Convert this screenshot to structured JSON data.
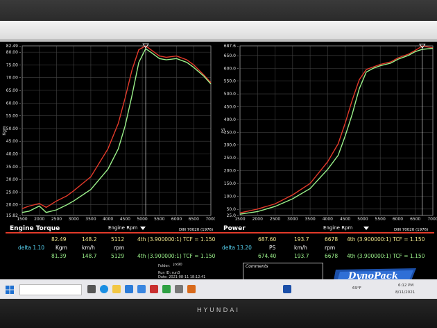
{
  "torque_panel": {
    "title": "Engine Torque",
    "xlabel": "Engine Rpm",
    "din": "DIN 70020 (1976)",
    "ylabel": "Kgm",
    "top_value": "82.49"
  },
  "power_panel": {
    "title": "Power",
    "xlabel": "Engine Rpm",
    "din": "DIN 70020 (1976)",
    "ylabel": "PS",
    "top_value": "687.6"
  },
  "chart_data": [
    {
      "type": "line",
      "title": "Engine Torque",
      "xlabel": "Engine Rpm",
      "ylabel": "Kgm",
      "xlim": [
        1500,
        7000
      ],
      "ylim": [
        15.82,
        82.49
      ],
      "x_ticks": [
        "1500",
        "2000",
        "2500",
        "3000",
        "3500",
        "4000",
        "4500",
        "5000",
        "5500",
        "6000",
        "6500",
        "7000"
      ],
      "y_ticks": [
        "15.82",
        "20.00",
        "25.00",
        "30.00",
        "35.00",
        "40.00",
        "45.00",
        "50.00",
        "55.00",
        "60.00",
        "65.00",
        "70.00",
        "75.00",
        "80.00",
        "82.49"
      ],
      "grid": true,
      "series": [
        {
          "color": "#e23a2a",
          "x": [
            1500,
            1700,
            2000,
            2200,
            2500,
            2800,
            3000,
            3500,
            4000,
            4300,
            4500,
            4700,
            4900,
            5100,
            5300,
            5500,
            5700,
            6000,
            6300,
            6500,
            6800,
            7000
          ],
          "y": [
            18.5,
            19.5,
            20.5,
            19.0,
            21.5,
            23.5,
            25.5,
            31.0,
            42.0,
            52.0,
            62.0,
            73.0,
            81.0,
            82.5,
            80.5,
            78.5,
            78.0,
            78.5,
            77.0,
            75.0,
            71.0,
            68.0
          ]
        },
        {
          "color": "#9af08a",
          "x": [
            1500,
            1700,
            2000,
            2200,
            2500,
            2800,
            3000,
            3500,
            4000,
            4300,
            4500,
            4700,
            4900,
            5100,
            5300,
            5500,
            5700,
            6000,
            6300,
            6500,
            6800,
            7000
          ],
          "y": [
            17.0,
            17.5,
            19.5,
            17.0,
            18.0,
            20.0,
            21.5,
            26.0,
            34.0,
            42.0,
            51.0,
            63.0,
            76.0,
            81.4,
            79.5,
            77.5,
            77.0,
            77.5,
            76.0,
            74.0,
            70.5,
            67.5
          ]
        }
      ]
    },
    {
      "type": "line",
      "title": "Power",
      "xlabel": "Engine Rpm",
      "ylabel": "PS",
      "xlim": [
        1500,
        7000
      ],
      "ylim": [
        25.0,
        687.6
      ],
      "x_ticks": [
        "1500",
        "2000",
        "2500",
        "3000",
        "3500",
        "4000",
        "4500",
        "5000",
        "5500",
        "6000",
        "6500",
        "7000"
      ],
      "y_ticks": [
        "25.0",
        "50.0",
        "100.0",
        "150.0",
        "200.0",
        "250.0",
        "300.0",
        "350.0",
        "400.0",
        "450.0",
        "500.0",
        "550.0",
        "600.0",
        "650.0",
        "687.6"
      ],
      "grid": true,
      "series": [
        {
          "color": "#e23a2a",
          "x": [
            1500,
            2000,
            2500,
            3000,
            3500,
            4000,
            4300,
            4500,
            4700,
            4900,
            5100,
            5300,
            5500,
            5800,
            6000,
            6300,
            6500,
            6700,
            7000
          ],
          "y": [
            35,
            50,
            70,
            105,
            150,
            235,
            305,
            385,
            475,
            555,
            595,
            605,
            615,
            625,
            640,
            655,
            670,
            687,
            680
          ]
        },
        {
          "color": "#9af08a",
          "x": [
            1500,
            2000,
            2500,
            3000,
            3500,
            4000,
            4300,
            4500,
            4700,
            4900,
            5100,
            5300,
            5500,
            5800,
            6000,
            6300,
            6500,
            6700,
            7000
          ],
          "y": [
            30,
            40,
            60,
            90,
            130,
            205,
            260,
            335,
            420,
            520,
            585,
            600,
            610,
            620,
            635,
            650,
            665,
            674,
            678
          ]
        }
      ]
    }
  ],
  "readout": {
    "left_row1": [
      "82.49",
      "148.2",
      "5112",
      "4th (3.900000:1) TCF = 1.150"
    ],
    "left_units": [
      "delta 1.10",
      "Kgm",
      "km/h",
      "rpm"
    ],
    "left_row2": [
      "81.39",
      "148.7",
      "5129",
      "4th (3.900000:1) TCF = 1.150"
    ],
    "right_row1": [
      "687.60",
      "193.7",
      "6678",
      "4th (3.900000:1) TCF = 1.150"
    ],
    "right_units": [
      "delta 13.20",
      "PS",
      "km/h",
      "rpm"
    ],
    "right_row2": [
      "674.40",
      "193.7",
      "6678",
      "4th (3.900000:1) TCF = 1.150"
    ],
    "folder_label": "Folder:",
    "folder_value": "jrx90",
    "run_id": "Run ID: run3",
    "date": "Date: 2021-08-11 18:12:41",
    "comments_label": "Comments"
  },
  "logo_text": "DynoPack",
  "logo_sub": "TRACTIVE DYNAMOMETERS",
  "taskbar": {
    "search_placeholder": "",
    "temp": "69°F",
    "time": "6:12 PM",
    "date": "8/11/2021"
  },
  "monitor_brand": "HYUNDAI",
  "colors": {
    "red": "#e23a2a",
    "green": "#9af08a",
    "yellow": "#f0e68c",
    "cyan": "#58d8f8"
  }
}
